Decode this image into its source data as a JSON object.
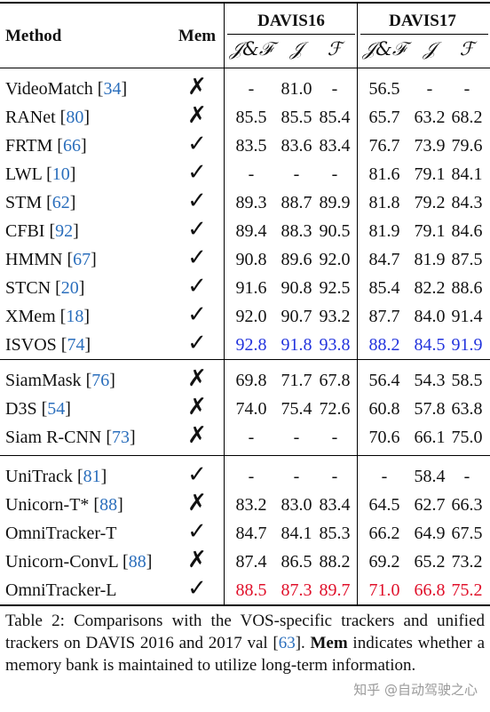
{
  "header": {
    "method": "Method",
    "mem": "Mem",
    "davis16": "DAVIS16",
    "davis17": "DAVIS17",
    "metrics": [
      "𝒥&ℱ",
      "𝒥",
      "ℱ"
    ]
  },
  "groups": [
    [
      {
        "name": "VideoMatch",
        "ref": "34",
        "mem": false,
        "d16": [
          "-",
          "81.0",
          "-"
        ],
        "d17": [
          "56.5",
          "-",
          "-"
        ],
        "color": ""
      },
      {
        "name": "RANet",
        "ref": "80",
        "mem": false,
        "d16": [
          "85.5",
          "85.5",
          "85.4"
        ],
        "d17": [
          "65.7",
          "63.2",
          "68.2"
        ],
        "color": ""
      },
      {
        "name": "FRTM",
        "ref": "66",
        "mem": true,
        "d16": [
          "83.5",
          "83.6",
          "83.4"
        ],
        "d17": [
          "76.7",
          "73.9",
          "79.6"
        ],
        "color": ""
      },
      {
        "name": "LWL",
        "ref": "10",
        "mem": true,
        "d16": [
          "-",
          "-",
          "-"
        ],
        "d17": [
          "81.6",
          "79.1",
          "84.1"
        ],
        "color": ""
      },
      {
        "name": "STM",
        "ref": "62",
        "mem": true,
        "d16": [
          "89.3",
          "88.7",
          "89.9"
        ],
        "d17": [
          "81.8",
          "79.2",
          "84.3"
        ],
        "color": ""
      },
      {
        "name": "CFBI",
        "ref": "92",
        "mem": true,
        "d16": [
          "89.4",
          "88.3",
          "90.5"
        ],
        "d17": [
          "81.9",
          "79.1",
          "84.6"
        ],
        "color": ""
      },
      {
        "name": "HMMN",
        "ref": "67",
        "mem": true,
        "d16": [
          "90.8",
          "89.6",
          "92.0"
        ],
        "d17": [
          "84.7",
          "81.9",
          "87.5"
        ],
        "color": ""
      },
      {
        "name": "STCN",
        "ref": "20",
        "mem": true,
        "d16": [
          "91.6",
          "90.8",
          "92.5"
        ],
        "d17": [
          "85.4",
          "82.2",
          "88.6"
        ],
        "color": ""
      },
      {
        "name": "XMem",
        "ref": "18",
        "mem": true,
        "d16": [
          "92.0",
          "90.7",
          "93.2"
        ],
        "d17": [
          "87.7",
          "84.0",
          "91.4"
        ],
        "color": ""
      },
      {
        "name": "ISVOS",
        "ref": "74",
        "mem": true,
        "d16": [
          "92.8",
          "91.8",
          "93.8"
        ],
        "d17": [
          "88.2",
          "84.5",
          "91.9"
        ],
        "color": "blue"
      }
    ],
    [
      {
        "name": "SiamMask",
        "ref": "76",
        "mem": false,
        "d16": [
          "69.8",
          "71.7",
          "67.8"
        ],
        "d17": [
          "56.4",
          "54.3",
          "58.5"
        ],
        "color": ""
      },
      {
        "name": "D3S",
        "ref": "54",
        "mem": false,
        "d16": [
          "74.0",
          "75.4",
          "72.6"
        ],
        "d17": [
          "60.8",
          "57.8",
          "63.8"
        ],
        "color": ""
      },
      {
        "name": "Siam R-CNN",
        "ref": "73",
        "mem": false,
        "d16": [
          "-",
          "-",
          "-"
        ],
        "d17": [
          "70.6",
          "66.1",
          "75.0"
        ],
        "color": ""
      }
    ],
    [
      {
        "name": "UniTrack",
        "ref": "81",
        "mem": true,
        "d16": [
          "-",
          "-",
          "-"
        ],
        "d17": [
          "-",
          "58.4",
          "-"
        ],
        "color": ""
      },
      {
        "name": "Unicorn-T*",
        "ref": "88",
        "mem": false,
        "d16": [
          "83.2",
          "83.0",
          "83.4"
        ],
        "d17": [
          "64.5",
          "62.7",
          "66.3"
        ],
        "color": ""
      },
      {
        "name": "OmniTracker-T",
        "ref": "",
        "mem": true,
        "d16": [
          "84.7",
          "84.1",
          "85.3"
        ],
        "d17": [
          "66.2",
          "64.9",
          "67.5"
        ],
        "color": ""
      },
      {
        "name": "Unicorn-ConvL",
        "ref": "88",
        "mem": false,
        "d16": [
          "87.4",
          "86.5",
          "88.2"
        ],
        "d17": [
          "69.2",
          "65.2",
          "73.2"
        ],
        "color": ""
      },
      {
        "name": "OmniTracker-L",
        "ref": "",
        "mem": true,
        "d16": [
          "88.5",
          "87.3",
          "89.7"
        ],
        "d17": [
          "71.0",
          "66.8",
          "75.2"
        ],
        "color": "red"
      }
    ]
  ],
  "marks": {
    "yes": "✓",
    "no": "✗"
  },
  "caption": {
    "prefix": "Table 2: Comparisons with the VOS-specific trackers and unified trackers on DAVIS 2016 and 2017 val [",
    "ref": "63",
    "middle": "]. ",
    "bold": "Mem",
    "suffix": " indicates whether a memory bank is maintained to utilize long-term information."
  },
  "watermark": "知乎 @自动驾驶之心"
}
